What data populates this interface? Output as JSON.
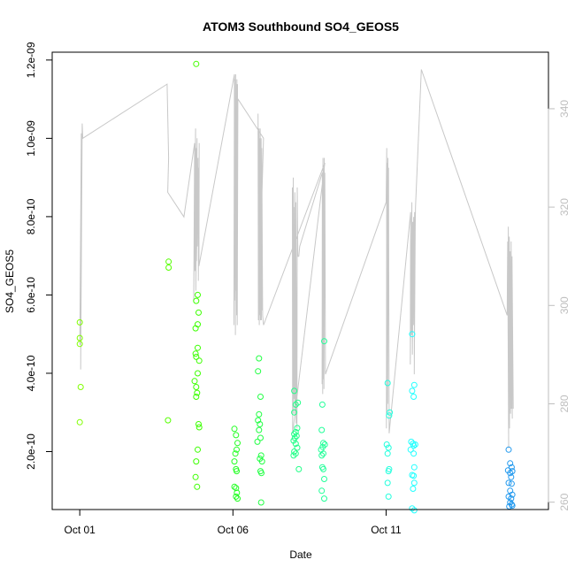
{
  "chart_data": {
    "type": "scatter",
    "title": "ATOM3 Southbound SO4_GEOS5",
    "xlabel": "Date",
    "ylabel": "SO4_GEOS5",
    "x_ticks": [
      "Oct 01",
      "Oct 06",
      "Oct 11"
    ],
    "x_tick_days": [
      1,
      6,
      11
    ],
    "xlim_days": [
      0.1,
      16.3
    ],
    "y_ticks": [
      "2.0e-10",
      "4.0e-10",
      "6.0e-10",
      "8.0e-10",
      "1.0e-09",
      "1.2e-09"
    ],
    "y_tick_values": [
      2e-10,
      4e-10,
      6e-10,
      8e-10,
      1e-09,
      1.2e-09
    ],
    "ylim": [
      5.2e-11,
      1.22e-09
    ],
    "y2_ticks": [
      "260",
      "280",
      "300",
      "320",
      "340"
    ],
    "y2_tick_values": [
      260,
      280,
      300,
      320,
      340
    ],
    "y2lim": [
      258.5,
      351.5
    ],
    "grid": false,
    "legend": "none",
    "colors": {
      "line": "#c8c8c8",
      "axis": "#000000",
      "y2_axis": "#bebebe"
    },
    "series": [
      {
        "points": [
          [
            1.0,
            5.3e-10,
            "#80ff00"
          ],
          [
            1.0,
            4.9e-10,
            "#80ff00"
          ],
          [
            1.0,
            4.75e-10,
            "#80ff00"
          ],
          [
            1.03,
            3.65e-10,
            "#80ff00"
          ],
          [
            1.0,
            2.75e-10,
            "#80ff00"
          ],
          [
            3.9,
            6.85e-10,
            "#55ff00"
          ],
          [
            3.9,
            6.7e-10,
            "#55ff00"
          ],
          [
            3.88,
            2.8e-10,
            "#55ff00"
          ],
          [
            4.8,
            1.19e-09,
            "#44ff00"
          ],
          [
            4.85,
            6e-10,
            "#3cff00"
          ],
          [
            4.8,
            5.85e-10,
            "#3cff00"
          ],
          [
            4.88,
            5.55e-10,
            "#3cff00"
          ],
          [
            4.85,
            5.25e-10,
            "#3cff00"
          ],
          [
            4.78,
            5.15e-10,
            "#3cff00"
          ],
          [
            4.85,
            4.65e-10,
            "#3cff00"
          ],
          [
            4.78,
            4.5e-10,
            "#3cff00"
          ],
          [
            4.8,
            4.42e-10,
            "#3cff00"
          ],
          [
            4.9,
            4.32e-10,
            "#3cff00"
          ],
          [
            4.85,
            4e-10,
            "#3cff00"
          ],
          [
            4.75,
            3.8e-10,
            "#3cff00"
          ],
          [
            4.8,
            3.65e-10,
            "#3cff00"
          ],
          [
            4.83,
            3.5e-10,
            "#3cff00"
          ],
          [
            4.8,
            3.4e-10,
            "#3cff00"
          ],
          [
            4.88,
            2.7e-10,
            "#3cff00"
          ],
          [
            4.9,
            2.62e-10,
            "#3cff00"
          ],
          [
            4.85,
            2.05e-10,
            "#3cff00"
          ],
          [
            4.8,
            1.75e-10,
            "#3cff00"
          ],
          [
            4.78,
            1.35e-10,
            "#3cff00"
          ],
          [
            4.83,
            1.1e-10,
            "#3cff00"
          ],
          [
            6.05,
            2.58e-10,
            "#22ff22"
          ],
          [
            6.1,
            2.42e-10,
            "#22ff22"
          ],
          [
            6.15,
            2.22e-10,
            "#22ff22"
          ],
          [
            6.12,
            2.05e-10,
            "#22ff22"
          ],
          [
            6.08,
            1.95e-10,
            "#22ff22"
          ],
          [
            6.05,
            1.75e-10,
            "#22ff22"
          ],
          [
            6.1,
            1.55e-10,
            "#22ff22"
          ],
          [
            6.12,
            1.5e-10,
            "#22ff22"
          ],
          [
            6.05,
            1.1e-10,
            "#22ff22"
          ],
          [
            6.1,
            1.07e-10,
            "#22ff22"
          ],
          [
            6.13,
            9.5e-11,
            "#22ff22"
          ],
          [
            6.1,
            8.5e-11,
            "#22ff22"
          ],
          [
            6.15,
            8e-11,
            "#22ff22"
          ],
          [
            6.85,
            4.38e-10,
            "#22ff44"
          ],
          [
            6.82,
            4.05e-10,
            "#22ff44"
          ],
          [
            6.9,
            3.4e-10,
            "#22ff44"
          ],
          [
            6.85,
            2.95e-10,
            "#22ff44"
          ],
          [
            6.82,
            2.8e-10,
            "#22ff44"
          ],
          [
            6.88,
            2.7e-10,
            "#22ff44"
          ],
          [
            6.85,
            2.55e-10,
            "#22ff44"
          ],
          [
            6.9,
            2.35e-10,
            "#22ff44"
          ],
          [
            6.8,
            2.25e-10,
            "#22ff44"
          ],
          [
            6.92,
            1.9e-10,
            "#22ff44"
          ],
          [
            6.88,
            1.82e-10,
            "#22ff44"
          ],
          [
            6.95,
            1.75e-10,
            "#22ff44"
          ],
          [
            6.9,
            1.5e-10,
            "#22ff44"
          ],
          [
            6.93,
            1.45e-10,
            "#22ff44"
          ],
          [
            6.92,
            7e-11,
            "#22ff44"
          ],
          [
            8.0,
            3.55e-10,
            "#22ff88"
          ],
          [
            8.05,
            3.2e-10,
            "#22ff88"
          ],
          [
            8.12,
            3.25e-10,
            "#22ff88"
          ],
          [
            8.0,
            3e-10,
            "#22ff88"
          ],
          [
            8.1,
            2.6e-10,
            "#22ff88"
          ],
          [
            8.05,
            2.5e-10,
            "#22ff88"
          ],
          [
            8.0,
            2.45e-10,
            "#22ff88"
          ],
          [
            8.08,
            2.4e-10,
            "#22ff88"
          ],
          [
            8.02,
            2.35e-10,
            "#22ff88"
          ],
          [
            7.98,
            2.28e-10,
            "#22ff88"
          ],
          [
            8.05,
            2.2e-10,
            "#22ff88"
          ],
          [
            8.1,
            2.1e-10,
            "#22ff88"
          ],
          [
            8.0,
            2e-10,
            "#22ff88"
          ],
          [
            8.05,
            1.95e-10,
            "#22ff88"
          ],
          [
            7.98,
            1.9e-10,
            "#22ff88"
          ],
          [
            8.15,
            1.55e-10,
            "#22ff88"
          ],
          [
            8.98,
            4.82e-10,
            "#22ff99"
          ],
          [
            8.92,
            3.2e-10,
            "#22ff99"
          ],
          [
            8.9,
            2.55e-10,
            "#22ff99"
          ],
          [
            8.95,
            2.22e-10,
            "#22ff99"
          ],
          [
            9.0,
            2.18e-10,
            "#22ff99"
          ],
          [
            8.93,
            2.12e-10,
            "#22ff99"
          ],
          [
            8.88,
            2.05e-10,
            "#22ff99"
          ],
          [
            8.95,
            1.95e-10,
            "#22ff99"
          ],
          [
            8.9,
            1.9e-10,
            "#22ff99"
          ],
          [
            8.92,
            1.6e-10,
            "#22ff99"
          ],
          [
            8.95,
            1.55e-10,
            "#22ff99"
          ],
          [
            8.98,
            1.3e-10,
            "#22ff99"
          ],
          [
            8.9,
            1e-10,
            "#22ff99"
          ],
          [
            8.98,
            8e-11,
            "#22ff99"
          ],
          [
            11.05,
            3.75e-10,
            "#22ffdd"
          ],
          [
            11.12,
            3e-10,
            "#22ffdd"
          ],
          [
            11.1,
            2.92e-10,
            "#22ffdd"
          ],
          [
            11.02,
            2.18e-10,
            "#22ffdd"
          ],
          [
            11.08,
            2.1e-10,
            "#22ffdd"
          ],
          [
            11.05,
            1.95e-10,
            "#22ffdd"
          ],
          [
            11.1,
            1.55e-10,
            "#22ffdd"
          ],
          [
            11.08,
            1.5e-10,
            "#22ffdd"
          ],
          [
            11.05,
            1.2e-10,
            "#22ffdd"
          ],
          [
            11.08,
            8.5e-11,
            "#22ffdd"
          ],
          [
            11.85,
            5e-10,
            "#22ffff"
          ],
          [
            11.92,
            3.7e-10,
            "#22ffff"
          ],
          [
            11.85,
            3.55e-10,
            "#22ffff"
          ],
          [
            11.9,
            3.4e-10,
            "#22ffff"
          ],
          [
            11.82,
            2.25e-10,
            "#22ffff"
          ],
          [
            11.88,
            2.2e-10,
            "#22ffff"
          ],
          [
            11.9,
            2.15e-10,
            "#22ffff"
          ],
          [
            11.95,
            2.18e-10,
            "#22ffff"
          ],
          [
            11.8,
            2.05e-10,
            "#22ffff"
          ],
          [
            11.9,
            1.95e-10,
            "#22ffff"
          ],
          [
            11.92,
            1.6e-10,
            "#22ffff"
          ],
          [
            11.85,
            1.4e-10,
            "#22ffff"
          ],
          [
            11.9,
            1.38e-10,
            "#22ffff"
          ],
          [
            11.92,
            1.2e-10,
            "#22ffff"
          ],
          [
            11.88,
            1.05e-10,
            "#22ffff"
          ],
          [
            11.85,
            5.5e-11,
            "#22ffff"
          ],
          [
            11.92,
            5e-11,
            "#22ffff"
          ],
          [
            15.0,
            2.05e-10,
            "#2299ee"
          ],
          [
            15.05,
            1.7e-10,
            "#2299ee"
          ],
          [
            15.1,
            1.6e-10,
            "#2299ee"
          ],
          [
            14.98,
            1.52e-10,
            "#2299ee"
          ],
          [
            15.12,
            1.5e-10,
            "#2299ee"
          ],
          [
            15.05,
            1.45e-10,
            "#2299ee"
          ],
          [
            15.08,
            1.35e-10,
            "#2299ee"
          ],
          [
            15.0,
            1.2e-10,
            "#2299ee"
          ],
          [
            15.1,
            1.18e-10,
            "#2299ee"
          ],
          [
            15.05,
            1e-10,
            "#2299ee"
          ],
          [
            15.12,
            9e-11,
            "#2299ee"
          ],
          [
            15.0,
            8.5e-11,
            "#2299ee"
          ],
          [
            15.08,
            8e-11,
            "#2299ee"
          ],
          [
            15.05,
            7e-11,
            "#2299ee"
          ],
          [
            15.1,
            6.5e-11,
            "#2299ee"
          ],
          [
            15.02,
            6e-11,
            "#2299ee"
          ],
          [
            15.12,
            6.2e-11,
            "#2299ee"
          ]
        ]
      },
      {
        "axis": "right",
        "x": [
          1.0,
          1.05,
          1.03,
          1.08,
          1.1,
          3.85,
          3.9,
          3.87,
          4.4,
          4.75,
          4.72,
          4.78,
          4.76,
          4.8,
          4.79,
          4.83,
          4.81,
          4.86,
          4.84,
          4.88,
          4.87,
          4.9,
          4.89,
          4.92,
          6.05,
          6.03,
          6.07,
          6.05,
          6.09,
          6.08,
          6.12,
          6.1,
          6.13,
          6.12,
          6.15,
          6.14,
          6.16,
          7.0,
          6.83,
          6.82,
          6.86,
          6.85,
          6.88,
          6.87,
          6.9,
          6.89,
          6.93,
          6.92,
          6.95,
          6.94,
          6.97,
          7.0,
          9.0,
          7.95,
          7.94,
          7.98,
          7.97,
          8.0,
          7.99,
          8.03,
          8.02,
          8.06,
          8.05,
          8.09,
          8.1,
          8.12,
          8.15,
          8.18,
          8.92,
          8.91,
          8.94,
          8.93,
          8.96,
          8.95,
          8.98,
          8.97,
          9.0,
          9.02,
          11.0,
          11.02,
          11.01,
          11.04,
          11.03,
          11.06,
          11.05,
          11.08,
          11.1,
          11.8,
          11.79,
          11.84,
          11.83,
          11.87,
          11.86,
          11.9,
          11.89,
          11.93,
          11.92,
          11.95,
          11.96,
          12.15,
          14.95,
          14.97,
          15.0,
          14.99,
          15.03,
          15.02,
          15.06,
          15.05,
          15.09,
          15.08,
          15.12,
          15.11,
          15.15
        ],
        "y": [
          292,
          335,
          287,
          337,
          334,
          345,
          330,
          323,
          318,
          333,
          301,
          336,
          307,
          332,
          303,
          334,
          309,
          330,
          312,
          328,
          305,
          333,
          308,
          309,
          347,
          296,
          346,
          301,
          347,
          294,
          345,
          303,
          346,
          298,
          345,
          296,
          342,
          334,
          297,
          339,
          296,
          336,
          298,
          334,
          297,
          336,
          297,
          334,
          299,
          332,
          298,
          296,
          329,
          274,
          324,
          278,
          326,
          281,
          320,
          278,
          323,
          276,
          321,
          275,
          324,
          310,
          310,
          312,
          327,
          284,
          330,
          282,
          328,
          285,
          330,
          283,
          327,
          286,
          321,
          332,
          275,
          329,
          278,
          330,
          280,
          328,
          274,
          319,
          288,
          321,
          294,
          317,
          290,
          318,
          296,
          319,
          286,
          316,
          320,
          348,
          298,
          313,
          271,
          316,
          275,
          314,
          278,
          311,
          279,
          313,
          277,
          310,
          279
        ]
      }
    ]
  }
}
